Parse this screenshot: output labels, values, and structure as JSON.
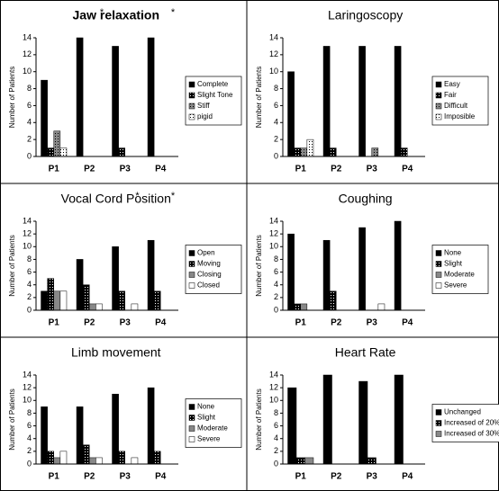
{
  "chart_data": [
    {
      "type": "bar",
      "title": "Jaw relaxation",
      "y_label": "Number of Patients",
      "categories": [
        "P1",
        "P2",
        "P3",
        "P4"
      ],
      "series": [
        {
          "name": "Complete",
          "color": "#000000",
          "values": [
            9,
            14,
            13,
            14
          ]
        },
        {
          "name": "Slight Tone",
          "color": "#000000",
          "pattern": "dots",
          "values": [
            1,
            0,
            1,
            0
          ]
        },
        {
          "name": "Stiff",
          "color": "#888888",
          "pattern": "dots",
          "values": [
            3,
            0,
            0,
            0
          ]
        },
        {
          "name": "pigid",
          "color": "#ffffff",
          "pattern": "dots",
          "values": [
            1,
            0,
            0,
            0
          ]
        }
      ],
      "ylim": [
        0,
        14
      ],
      "yticks": [
        0,
        2,
        4,
        6,
        8,
        10,
        12,
        14
      ],
      "annotations": [
        {
          "text": "*",
          "category": "P2"
        },
        {
          "text": "*",
          "category": "P4"
        }
      ]
    },
    {
      "type": "bar",
      "title": "Laringoscopy",
      "y_label": "Number of Patients",
      "categories": [
        "P1",
        "P2",
        "P3",
        "P4"
      ],
      "series": [
        {
          "name": "Easy",
          "color": "#000000",
          "values": [
            10,
            13,
            13,
            13
          ]
        },
        {
          "name": "Fair",
          "color": "#000000",
          "pattern": "dots",
          "values": [
            1,
            1,
            0,
            1
          ]
        },
        {
          "name": "Difficult",
          "color": "#888888",
          "pattern": "dots",
          "values": [
            1,
            0,
            1,
            0
          ]
        },
        {
          "name": "Imposible",
          "color": "#ffffff",
          "pattern": "dots",
          "values": [
            2,
            0,
            0,
            0
          ]
        }
      ],
      "ylim": [
        0,
        14
      ],
      "yticks": [
        0,
        2,
        4,
        6,
        8,
        10,
        12,
        14
      ]
    },
    {
      "type": "bar",
      "title": "Vocal Cord Position",
      "y_label": "Number of Patients",
      "categories": [
        "P1",
        "P2",
        "P3",
        "P4"
      ],
      "series": [
        {
          "name": "Open",
          "color": "#000000",
          "values": [
            3,
            8,
            10,
            11
          ]
        },
        {
          "name": "Moving",
          "color": "#000000",
          "pattern": "dots",
          "values": [
            5,
            4,
            3,
            3
          ]
        },
        {
          "name": "Closing",
          "color": "#888888",
          "values": [
            3,
            1,
            0,
            0
          ]
        },
        {
          "name": "Closed",
          "color": "#ffffff",
          "values": [
            3,
            1,
            1,
            0
          ]
        }
      ],
      "ylim": [
        0,
        14
      ],
      "yticks": [
        0,
        2,
        4,
        6,
        8,
        10,
        12,
        14
      ],
      "annotations": [
        {
          "text": "*",
          "category": "P3"
        },
        {
          "text": "*",
          "category": "P4"
        }
      ]
    },
    {
      "type": "bar",
      "title": "Coughing",
      "y_label": "Number of Patients",
      "categories": [
        "P1",
        "P2",
        "P3",
        "P4"
      ],
      "series": [
        {
          "name": "None",
          "color": "#000000",
          "values": [
            12,
            11,
            13,
            14
          ]
        },
        {
          "name": "Slight",
          "color": "#000000",
          "pattern": "dots",
          "values": [
            1,
            3,
            0,
            0
          ]
        },
        {
          "name": "Moderate",
          "color": "#888888",
          "values": [
            1,
            0,
            0,
            0
          ]
        },
        {
          "name": "Severe",
          "color": "#ffffff",
          "values": [
            0,
            0,
            1,
            0
          ]
        }
      ],
      "ylim": [
        0,
        14
      ],
      "yticks": [
        0,
        2,
        4,
        6,
        8,
        10,
        12,
        14
      ]
    },
    {
      "type": "bar",
      "title": "Limb movement",
      "y_label": "Number of Patients",
      "categories": [
        "P1",
        "P2",
        "P3",
        "P4"
      ],
      "series": [
        {
          "name": "None",
          "color": "#000000",
          "values": [
            9,
            9,
            11,
            12
          ]
        },
        {
          "name": "Slight",
          "color": "#000000",
          "pattern": "dots",
          "values": [
            2,
            3,
            2,
            2
          ]
        },
        {
          "name": "Moderate",
          "color": "#888888",
          "values": [
            1,
            1,
            0,
            0
          ]
        },
        {
          "name": "Severe",
          "color": "#ffffff",
          "values": [
            2,
            1,
            1,
            0
          ]
        }
      ],
      "ylim": [
        0,
        14
      ],
      "yticks": [
        0,
        2,
        4,
        6,
        8,
        10,
        12,
        14
      ]
    },
    {
      "type": "bar",
      "title": "Heart Rate",
      "y_label": "Number of Patients",
      "categories": [
        "P1",
        "P2",
        "P3",
        "P4"
      ],
      "series": [
        {
          "name": "Unchanged",
          "color": "#000000",
          "values": [
            12,
            14,
            13,
            14
          ]
        },
        {
          "name": "Increased of 20%",
          "color": "#000000",
          "pattern": "dots",
          "values": [
            1,
            0,
            1,
            0
          ]
        },
        {
          "name": "Increased of 30%",
          "color": "#888888",
          "values": [
            1,
            0,
            0,
            0
          ]
        }
      ],
      "ylim": [
        0,
        14
      ],
      "yticks": [
        0,
        2,
        4,
        6,
        8,
        10,
        12,
        14
      ]
    }
  ]
}
